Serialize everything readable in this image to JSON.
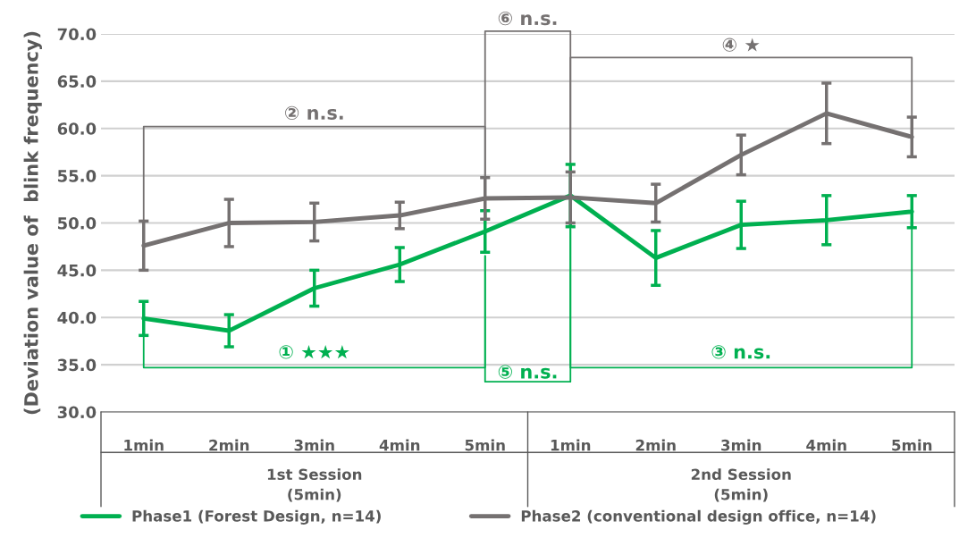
{
  "chart_data": {
    "type": "line",
    "ylabel": "(Deviation value of  blink frequency)",
    "categories": [
      "1min",
      "2min",
      "3min",
      "4min",
      "5min",
      "1min",
      "2min",
      "3min",
      "4min",
      "5min"
    ],
    "series": [
      {
        "name": "Phase1 (Forest Design, n=14)",
        "color": "#00b050",
        "values": [
          39.9,
          38.6,
          43.1,
          45.6,
          49.1,
          52.9,
          46.3,
          49.8,
          50.3,
          51.2
        ],
        "errors": [
          1.8,
          1.7,
          1.9,
          1.8,
          2.2,
          3.3,
          2.9,
          2.5,
          2.6,
          1.7
        ]
      },
      {
        "name": "Phase2 (conventional design office, n=14)",
        "color": "#757171",
        "values": [
          47.6,
          50.0,
          50.1,
          50.8,
          52.6,
          52.7,
          52.1,
          57.2,
          61.6,
          59.1
        ],
        "errors": [
          2.6,
          2.5,
          2.0,
          1.4,
          2.2,
          2.7,
          2.0,
          2.1,
          3.2,
          2.1
        ]
      }
    ],
    "ylim": [
      30,
      70
    ],
    "yticks": [
      {
        "value": 30,
        "label": "30.0"
      },
      {
        "value": 35,
        "label": "35.0"
      },
      {
        "value": 40,
        "label": "40.0"
      },
      {
        "value": 45,
        "label": "45.0"
      },
      {
        "value": 50,
        "label": "50.0"
      },
      {
        "value": 55,
        "label": "55.0"
      },
      {
        "value": 60,
        "label": "60.0"
      },
      {
        "value": 65,
        "label": "65.0"
      },
      {
        "value": 70,
        "label": "70.0"
      }
    ],
    "annotations": [
      "① ★★★",
      "② n.s.",
      "③ n.s.",
      "④ ★",
      "⑤ n.s.",
      "⑥ n.s.",
      "1st Session\n(5min)",
      "2nd Session\n(5min)"
    ],
    "grid": "y",
    "legend": "bottom",
    "marker": "none",
    "line_style": "solid"
  }
}
